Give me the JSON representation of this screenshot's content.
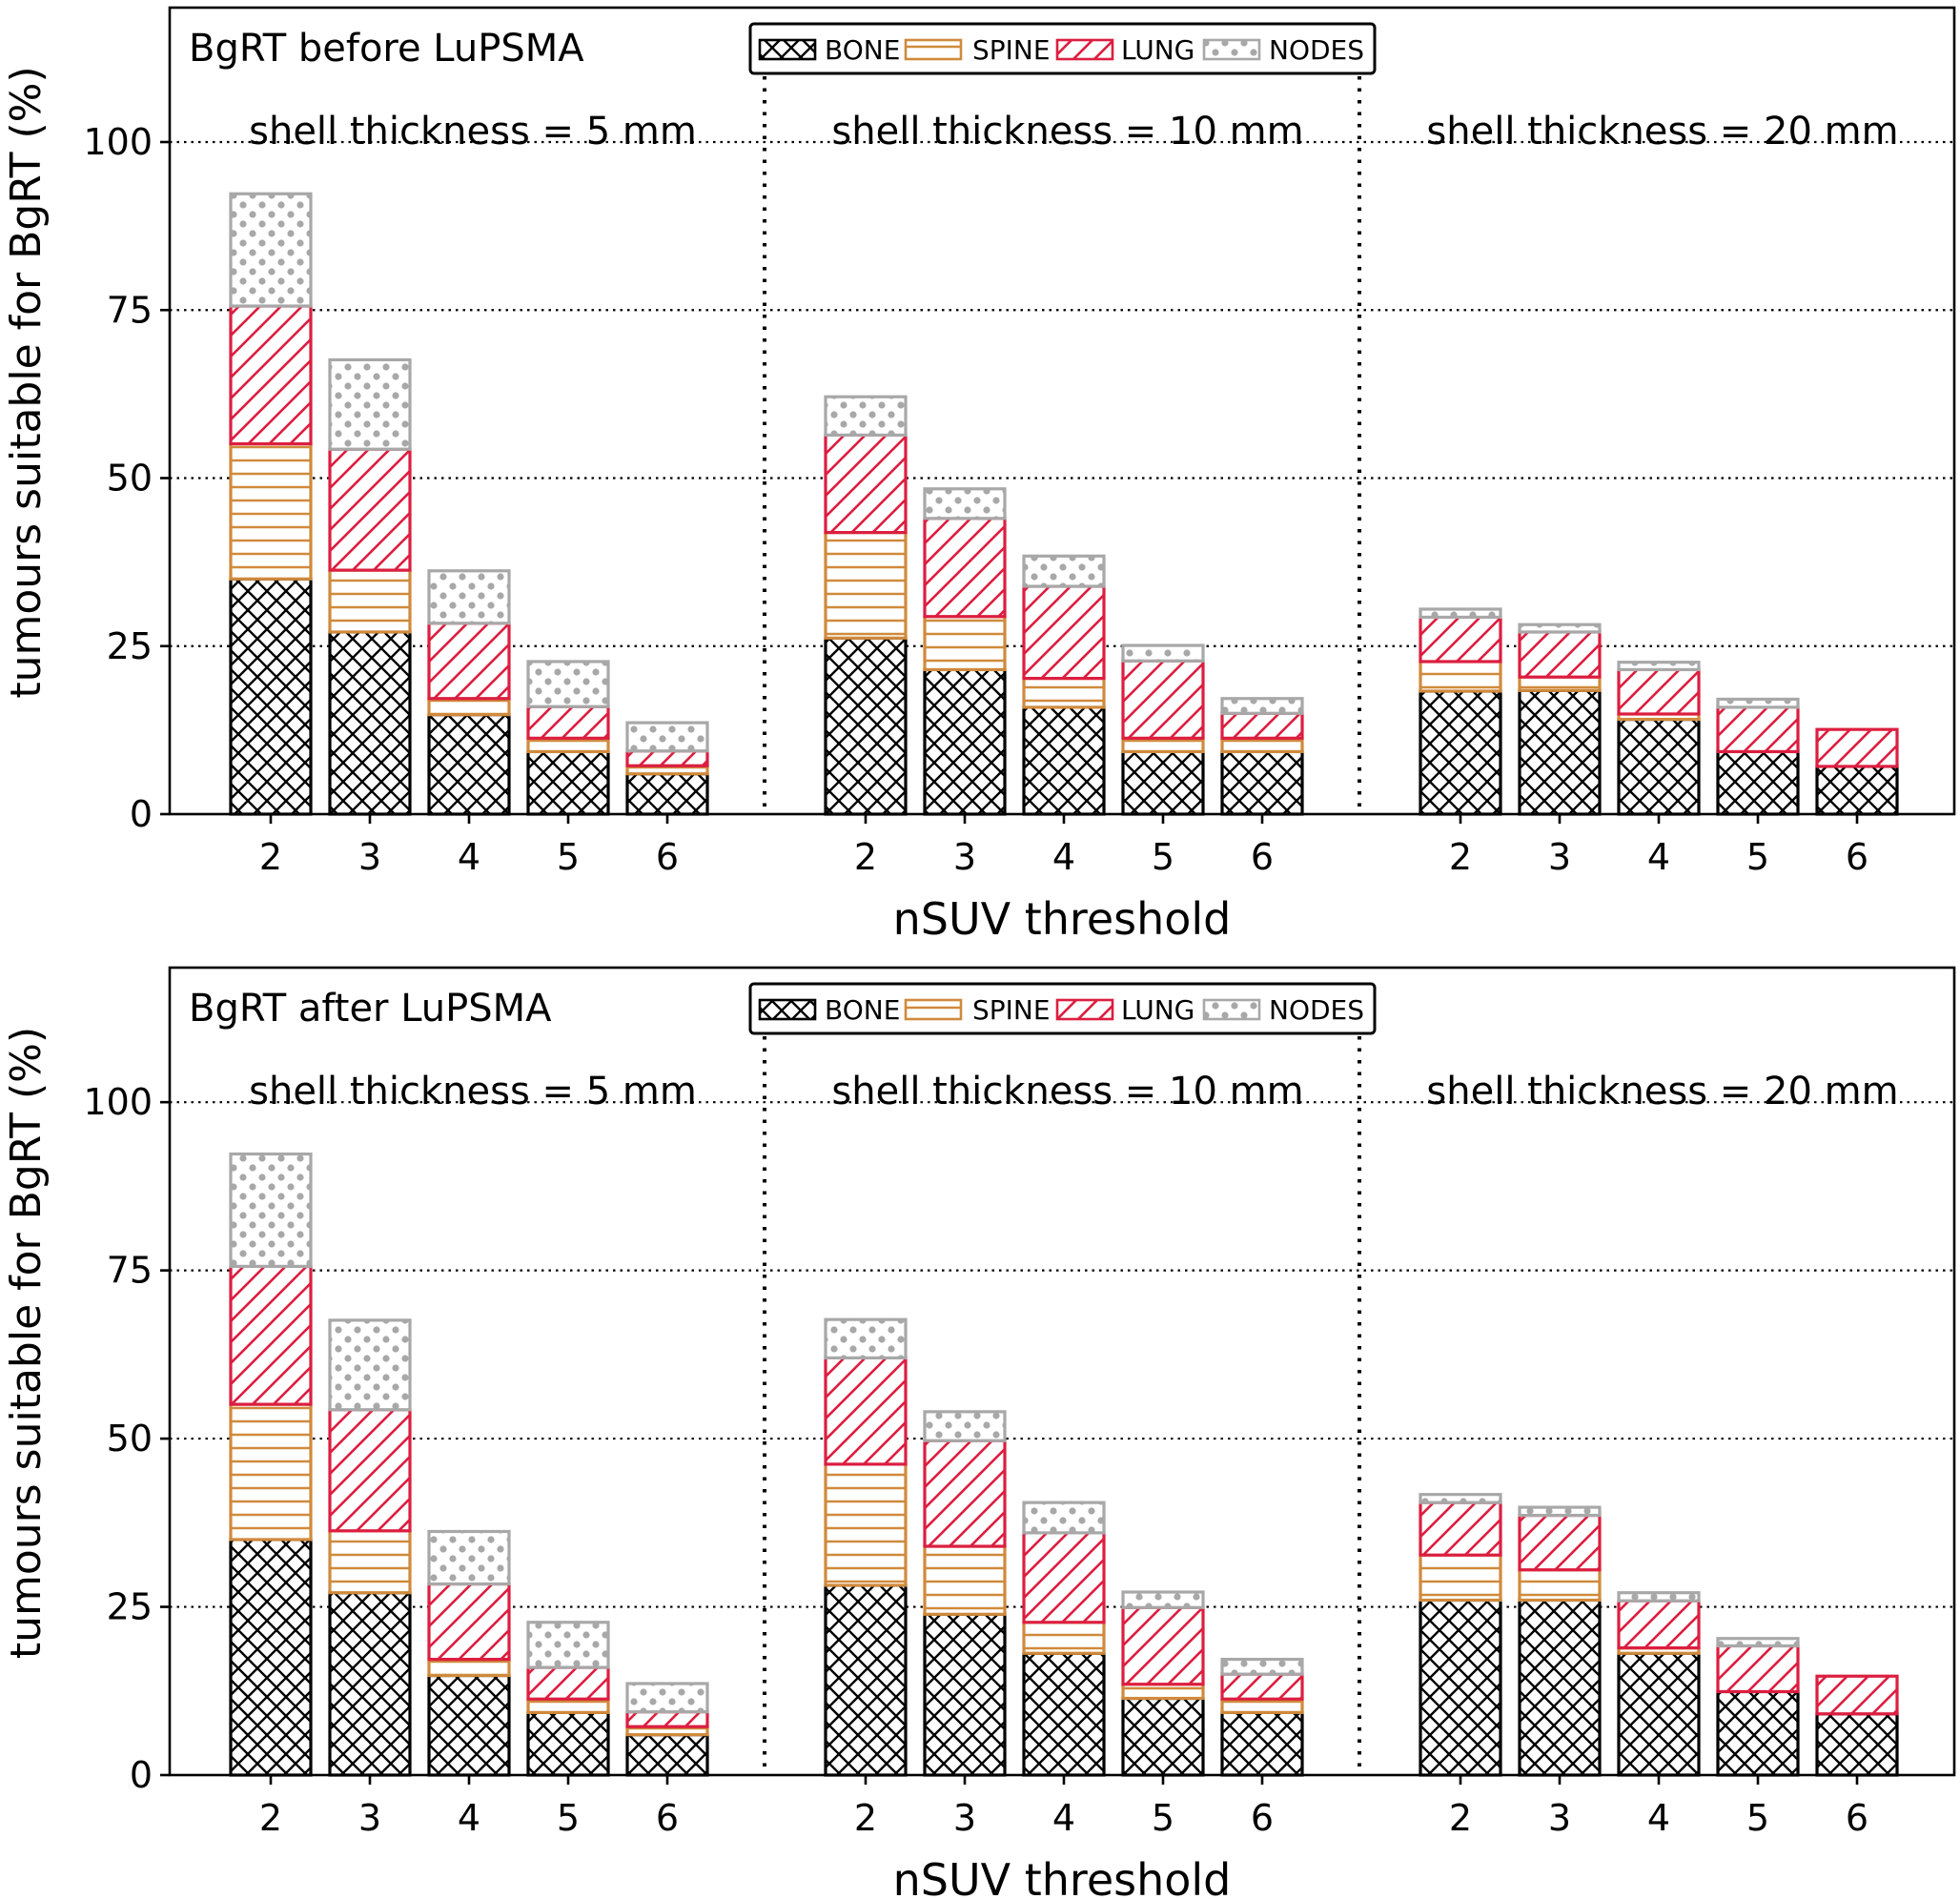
{
  "chart_data": [
    {
      "type": "bar",
      "stacked": true,
      "title": "BgRT before LuPSMA",
      "xlabel": "nSUV threshold",
      "ylabel": "tumours suitable for BgRT (%)",
      "ylim": [
        0,
        120
      ],
      "yticks": [
        "0",
        "25",
        "50",
        "75",
        "100"
      ],
      "categories": [
        "2",
        "3",
        "4",
        "5",
        "6"
      ],
      "series_names": [
        "BONE",
        "SPINE",
        "LUNG",
        "NODES"
      ],
      "groups": [
        {
          "label": "shell thickness = 5 mm",
          "series": [
            {
              "name": "BONE",
              "values": [
                35,
                27.1,
                14.8,
                9.3,
                6.0
              ]
            },
            {
              "name": "SPINE",
              "values": [
                20.1,
                9.2,
                2.4,
                2.0,
                1.2
              ]
            },
            {
              "name": "LUNG",
              "values": [
                20.5,
                18.0,
                11.2,
                4.7,
                2.2
              ]
            },
            {
              "name": "NODES",
              "values": [
                16.7,
                13.3,
                7.8,
                6.7,
                4.2
              ]
            }
          ]
        },
        {
          "label": "shell thickness = 10 mm",
          "series": [
            {
              "name": "BONE",
              "values": [
                26.2,
                21.5,
                15.9,
                9.3,
                9.3
              ]
            },
            {
              "name": "SPINE",
              "values": [
                15.7,
                7.9,
                4.3,
                2.0,
                2.0
              ]
            },
            {
              "name": "LUNG",
              "values": [
                14.5,
                14.6,
                13.7,
                11.5,
                3.7
              ]
            },
            {
              "name": "NODES",
              "values": [
                5.7,
                4.4,
                4.5,
                2.3,
                2.2
              ]
            }
          ]
        },
        {
          "label": "shell thickness = 20 mm",
          "series": [
            {
              "name": "BONE",
              "values": [
                18.3,
                18.4,
                14.1,
                9.3,
                7.1
              ]
            },
            {
              "name": "SPINE",
              "values": [
                4.4,
                2.0,
                0.8,
                0.0,
                0.0
              ]
            },
            {
              "name": "LUNG",
              "values": [
                6.6,
                6.7,
                6.6,
                6.6,
                5.5
              ]
            },
            {
              "name": "NODES",
              "values": [
                1.2,
                1.1,
                1.1,
                1.2,
                0.0
              ]
            }
          ]
        }
      ]
    },
    {
      "type": "bar",
      "stacked": true,
      "title": "BgRT after LuPSMA",
      "xlabel": "nSUV threshold",
      "ylabel": "tumours suitable for BgRT (%)",
      "ylim": [
        0,
        120
      ],
      "yticks": [
        "0",
        "25",
        "50",
        "75",
        "100"
      ],
      "categories": [
        "2",
        "3",
        "4",
        "5",
        "6"
      ],
      "series_names": [
        "BONE",
        "SPINE",
        "LUNG",
        "NODES"
      ],
      "groups": [
        {
          "label": "shell thickness = 5 mm",
          "series": [
            {
              "name": "BONE",
              "values": [
                35,
                27.1,
                14.8,
                9.3,
                6.0
              ]
            },
            {
              "name": "SPINE",
              "values": [
                20.1,
                9.2,
                2.4,
                2.0,
                1.2
              ]
            },
            {
              "name": "LUNG",
              "values": [
                20.5,
                18.0,
                11.2,
                4.7,
                2.2
              ]
            },
            {
              "name": "NODES",
              "values": [
                16.7,
                13.3,
                7.8,
                6.7,
                4.2
              ]
            }
          ]
        },
        {
          "label": "shell thickness = 10 mm",
          "series": [
            {
              "name": "BONE",
              "values": [
                28.2,
                23.9,
                18.1,
                11.4,
                9.3
              ]
            },
            {
              "name": "SPINE",
              "values": [
                18.0,
                10.1,
                4.6,
                2.1,
                2.0
              ]
            },
            {
              "name": "LUNG",
              "values": [
                15.8,
                15.7,
                13.3,
                11.4,
                3.7
              ]
            },
            {
              "name": "NODES",
              "values": [
                5.7,
                4.3,
                4.5,
                2.3,
                2.2
              ]
            }
          ]
        },
        {
          "label": "shell thickness = 20 mm",
          "series": [
            {
              "name": "BONE",
              "values": [
                26.0,
                26.0,
                18.1,
                12.4,
                9.1
              ]
            },
            {
              "name": "SPINE",
              "values": [
                6.7,
                4.5,
                0.8,
                0.0,
                0.0
              ]
            },
            {
              "name": "LUNG",
              "values": [
                7.8,
                8.1,
                7.0,
                6.8,
                5.6
              ]
            },
            {
              "name": "NODES",
              "values": [
                1.2,
                1.2,
                1.2,
                1.1,
                0.0
              ]
            }
          ]
        }
      ]
    }
  ],
  "style": {
    "colors": {
      "BONE": "#000000",
      "SPINE": "#d08a3c",
      "LUNG": "#dc1e40",
      "NODES": "#a8a8a8",
      "axis": "#000000",
      "grid": "#000000"
    }
  }
}
